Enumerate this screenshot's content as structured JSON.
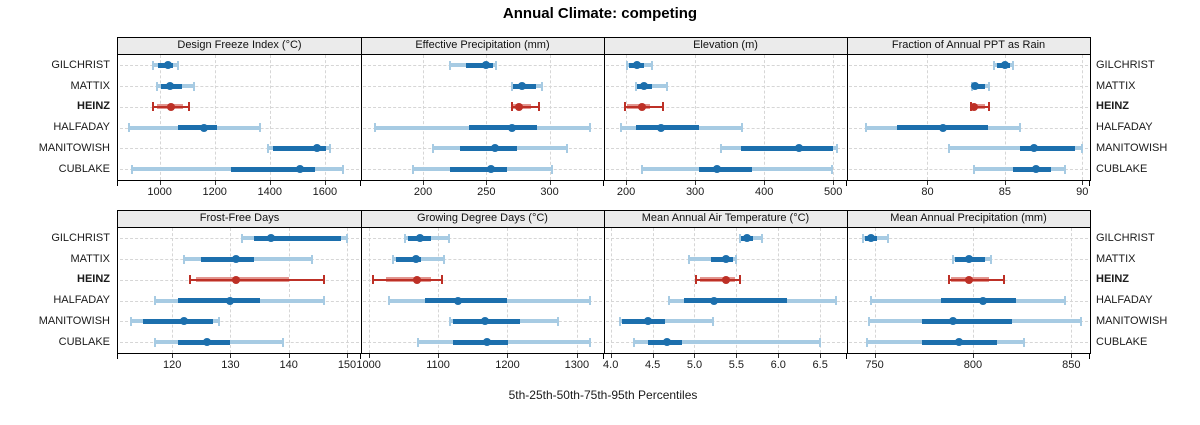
{
  "title": "Annual Climate: competing",
  "xlabel": "5th-25th-50th-75th-95th Percentiles",
  "sites": [
    "GILCHRIST",
    "MATTIX",
    "HEINZ",
    "HALFADAY",
    "MANITOWISH",
    "CUBLAKE"
  ],
  "highlight_site": "HEINZ",
  "colors": {
    "series_blue": "#1c6fad",
    "series_blue_light": "#a7cbe3",
    "series_red": "#bd3026",
    "series_red_light": "#e2958f",
    "strip_bg": "#ebebeb",
    "grid": "#d6d6d6",
    "border": "#000000",
    "tick": "#333333"
  },
  "chart_data": {
    "type": "dotplot",
    "subtype": "percentile-ranges",
    "percentiles": [
      5,
      25,
      50,
      75,
      95
    ],
    "layout": "2 rows x 4 cols",
    "grid": "dashed",
    "panels": [
      {
        "title": "Design Freeze Index (°C)",
        "ticks": [
          1000,
          1200,
          1400,
          1600
        ],
        "tick_labels": [
          "1000",
          "1200",
          "1400",
          "1600"
        ],
        "xlim": [
          849,
          1731
        ],
        "values": {
          "GILCHRIST": [
            975,
            995,
            1030,
            1050,
            1065
          ],
          "MATTIX": [
            990,
            1005,
            1037,
            1083,
            1125
          ],
          "HEINZ": [
            977,
            990,
            1042,
            1085,
            1105
          ],
          "HALFADAY": [
            890,
            1065,
            1160,
            1210,
            1365
          ],
          "MANITOWISH": [
            1395,
            1410,
            1570,
            1605,
            1620
          ],
          "CUBLAKE": [
            900,
            1260,
            1510,
            1565,
            1665
          ]
        }
      },
      {
        "title": "Effective Precipitation (mm)",
        "ticks": [
          200,
          250,
          300
        ],
        "tick_labels": [
          "200",
          "250",
          "300"
        ],
        "xlim": [
          151,
          343
        ],
        "values": {
          "GILCHRIST": [
            221,
            234,
            250,
            255,
            258
          ],
          "MATTIX": [
            270,
            271,
            278,
            289,
            294
          ],
          "HEINZ": [
            270,
            271,
            276,
            285,
            292
          ],
          "HALFADAY": [
            162,
            236,
            270,
            290,
            332
          ],
          "MANITOWISH": [
            208,
            229,
            257,
            274,
            314
          ],
          "CUBLAKE": [
            192,
            221,
            254,
            266,
            302
          ]
        }
      },
      {
        "title": "Elevation (m)",
        "ticks": [
          200,
          300,
          400,
          500
        ],
        "tick_labels": [
          "200",
          "300",
          "400",
          "500"
        ],
        "xlim": [
          168,
          520
        ],
        "values": {
          "GILCHRIST": [
            201,
            204,
            216,
            226,
            238
          ],
          "MATTIX": [
            214,
            216,
            226,
            238,
            259
          ],
          "HEINZ": [
            198,
            201,
            223,
            235,
            253
          ],
          "HALFADAY": [
            192,
            214,
            250,
            305,
            368
          ],
          "MANITOWISH": [
            338,
            366,
            451,
            500,
            506
          ],
          "CUBLAKE": [
            223,
            305,
            332,
            383,
            498
          ]
        }
      },
      {
        "title": "Fraction of Annual PPT as Rain",
        "ticks": [
          80,
          85,
          90
        ],
        "tick_labels": [
          "80",
          "85",
          "90"
        ],
        "xlim": [
          74.8,
          90.5
        ],
        "values": {
          "GILCHRIST": [
            84.3,
            84.5,
            85.0,
            85.3,
            85.5
          ],
          "MATTIX": [
            82.9,
            83.0,
            83.1,
            83.7,
            84.0
          ],
          "HEINZ": [
            82.8,
            83.0,
            83.0,
            83.7,
            84.0
          ],
          "HALFADAY": [
            76.0,
            78.0,
            81.0,
            83.9,
            86.0
          ],
          "MANITOWISH": [
            81.4,
            86.0,
            86.9,
            89.5,
            90.0
          ],
          "CUBLAKE": [
            83.0,
            85.5,
            87.0,
            88.0,
            88.9
          ]
        }
      },
      {
        "title": "Frost-Free Days",
        "ticks": [
          120,
          130,
          140,
          150
        ],
        "tick_labels": [
          "120",
          "130",
          "140",
          "150"
        ],
        "xlim": [
          110.7,
          152.4
        ],
        "values": {
          "GILCHRIST": [
            132,
            134,
            137,
            149,
            150
          ],
          "MATTIX": [
            122,
            125,
            131,
            134,
            144
          ],
          "HEINZ": [
            123,
            124,
            131,
            140,
            146
          ],
          "HALFADAY": [
            117,
            121,
            130,
            135,
            146
          ],
          "MANITOWISH": [
            113,
            115,
            122,
            127,
            128
          ],
          "CUBLAKE": [
            117,
            121,
            126,
            130,
            139
          ]
        }
      },
      {
        "title": "Growing Degree Days (°C)",
        "ticks": [
          1000,
          1100,
          1200,
          1300
        ],
        "tick_labels": [
          "1000",
          "1100",
          "1200",
          "1300"
        ],
        "xlim": [
          989,
          1339
        ],
        "values": {
          "GILCHRIST": [
            1053,
            1057,
            1074,
            1090,
            1116
          ],
          "MATTIX": [
            1035,
            1040,
            1068,
            1076,
            1108
          ],
          "HEINZ": [
            1007,
            1025,
            1069,
            1090,
            1106
          ],
          "HALFADAY": [
            1030,
            1081,
            1129,
            1199,
            1319
          ],
          "MANITOWISH": [
            1117,
            1122,
            1167,
            1218,
            1273
          ],
          "CUBLAKE": [
            1071,
            1122,
            1170,
            1201,
            1319
          ]
        }
      },
      {
        "title": "Mean Annual Air Temperature (°C)",
        "ticks": [
          4.0,
          4.5,
          5.0,
          5.5,
          6.0,
          6.5
        ],
        "tick_labels": [
          "4.0",
          "4.5",
          "5.0",
          "5.5",
          "6.0",
          "6.5"
        ],
        "xlim": [
          3.92,
          6.82
        ],
        "values": {
          "GILCHRIST": [
            5.54,
            5.56,
            5.63,
            5.7,
            5.81
          ],
          "MATTIX": [
            4.93,
            5.2,
            5.37,
            5.46,
            5.49
          ],
          "HEINZ": [
            5.02,
            5.06,
            5.37,
            5.48,
            5.54
          ],
          "HALFADAY": [
            4.69,
            4.87,
            5.23,
            6.1,
            6.69
          ],
          "MANITOWISH": [
            4.11,
            4.14,
            4.45,
            4.65,
            5.22
          ],
          "CUBLAKE": [
            4.28,
            4.45,
            4.67,
            4.85,
            6.5
          ]
        }
      },
      {
        "title": "Mean Annual Precipitation (mm)",
        "ticks": [
          750,
          800,
          850
        ],
        "tick_labels": [
          "750",
          "800",
          "850"
        ],
        "xlim": [
          736,
          859.5
        ],
        "values": {
          "GILCHRIST": [
            744,
            745,
            748,
            751,
            757
          ],
          "MATTIX": [
            790,
            791,
            798,
            806,
            809
          ],
          "HEINZ": [
            788,
            789,
            798,
            808,
            816
          ],
          "HALFADAY": [
            748,
            784,
            805,
            822,
            847
          ],
          "MANITOWISH": [
            747,
            774,
            790,
            820,
            855
          ],
          "CUBLAKE": [
            746,
            774,
            793,
            812,
            826
          ]
        }
      }
    ]
  }
}
